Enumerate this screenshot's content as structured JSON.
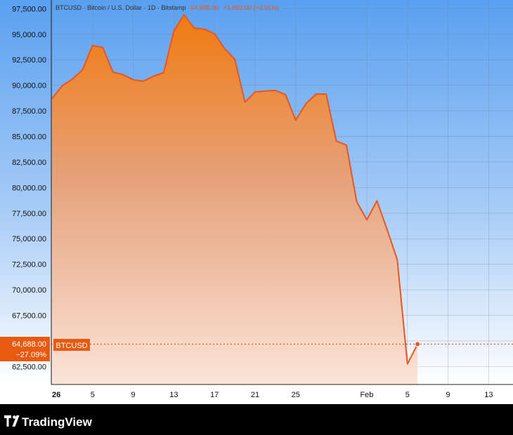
{
  "legend": {
    "symbol_line": "BTCUSD · Bitcoin / U.S. Dollar · 1D · Bitstamp",
    "last_price": "64,688.00",
    "change": "+1,893.00 (+3.01%)"
  },
  "price_badge": {
    "price": "64,688.00",
    "change_pct": "−27.09%",
    "symbol": "BTCUSD"
  },
  "footer": {
    "brand": "TradingView",
    "logo_icon": "tradingview-logo-icon"
  },
  "colors": {
    "background_top": "#5aa0f0",
    "background_bottom": "#ffffff",
    "line": "#e8561e",
    "fill_top": "#f07a10",
    "fill_bottom": "#fbe4d8",
    "badge": "#e85a10",
    "footer_bg": "#000000",
    "legend_text": "#333333",
    "legend_change": "#e8561e"
  },
  "chart_data": {
    "type": "area",
    "title": "BTCUSD · Bitcoin / U.S. Dollar · 1D · Bitstamp",
    "xlabel": "",
    "ylabel": "",
    "ylim": [
      60742,
      98350
    ],
    "xlim": [
      0,
      45
    ],
    "grid": true,
    "y_ticks": [
      "62,500.00",
      "65,000.00",
      "67,500.00",
      "70,000.00",
      "72,500.00",
      "75,000.00",
      "77,500.00",
      "80,000.00",
      "82,500.00",
      "85,000.00",
      "87,500.00",
      "90,000.00",
      "92,500.00",
      "95,000.00",
      "97,500.00"
    ],
    "y_tick_values": [
      62500,
      65000,
      67500,
      70000,
      72500,
      75000,
      77500,
      80000,
      82500,
      85000,
      87500,
      90000,
      92500,
      95000,
      97500
    ],
    "x_ticks": [
      {
        "label": "26",
        "x": 0,
        "bold": true
      },
      {
        "label": "5",
        "x": 4
      },
      {
        "label": "9",
        "x": 8
      },
      {
        "label": "13",
        "x": 12
      },
      {
        "label": "17",
        "x": 16
      },
      {
        "label": "21",
        "x": 20
      },
      {
        "label": "25",
        "x": 24
      },
      {
        "label": "Feb",
        "x": 31
      },
      {
        "label": "5",
        "x": 35
      },
      {
        "label": "9",
        "x": 39
      },
      {
        "label": "13",
        "x": 43
      }
    ],
    "series": [
      {
        "x": [
          0,
          1,
          2,
          3,
          4,
          5,
          6,
          7,
          8,
          9,
          10,
          11,
          12,
          13,
          14,
          15,
          16,
          17,
          18,
          19,
          20,
          21,
          22,
          23,
          24,
          25,
          26,
          27,
          28,
          29,
          30,
          31,
          32,
          33,
          34,
          35,
          36
        ],
        "values": [
          88700,
          89950,
          90600,
          91500,
          93900,
          93700,
          91300,
          91050,
          90550,
          90400,
          90900,
          91250,
          95300,
          96900,
          95600,
          95500,
          95050,
          93600,
          92550,
          88350,
          89350,
          89450,
          89500,
          89100,
          86600,
          88200,
          89150,
          89150,
          84550,
          84150,
          78650,
          76850,
          78700,
          75900,
          72950,
          62750,
          64688
        ]
      }
    ],
    "last_value": 64688
  }
}
